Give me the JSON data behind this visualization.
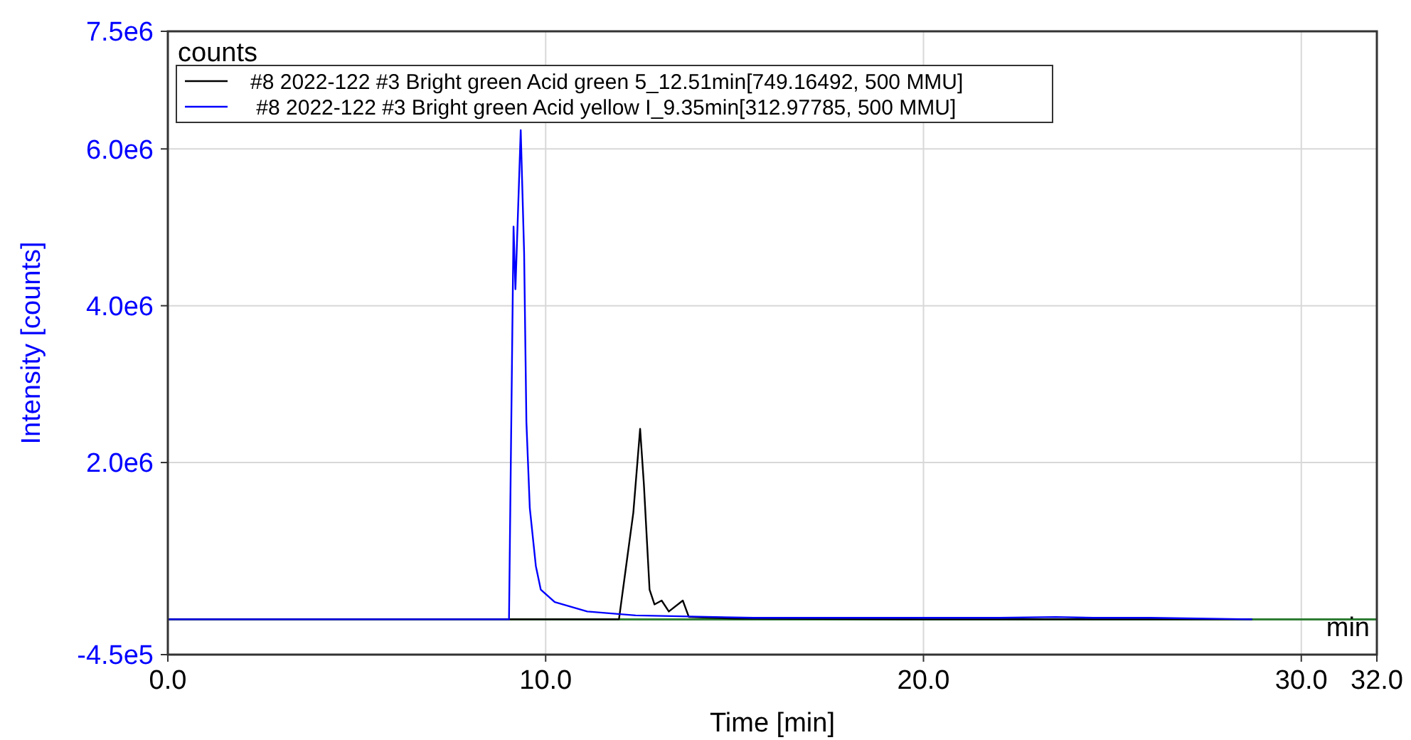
{
  "chart_data": {
    "type": "line",
    "xlabel": "Time [min]",
    "ylabel": "Intensity [counts]",
    "xlim": [
      0,
      32
    ],
    "xticks": [
      {
        "value": 0,
        "label": "0.0"
      },
      {
        "value": 10,
        "label": "10.0"
      },
      {
        "value": 20,
        "label": "20.0"
      },
      {
        "value": 30,
        "label": "30.0"
      },
      {
        "value": 32,
        "label": "32.0"
      }
    ],
    "ylim": [
      -450000,
      7500000
    ],
    "yticks": [
      {
        "value": -450000,
        "label": "-4.5e5"
      },
      {
        "value": 2000000,
        "label": "2.0e6"
      },
      {
        "value": 4000000,
        "label": "4.0e6"
      },
      {
        "value": 6000000,
        "label": "6.0e6"
      },
      {
        "value": 7500000,
        "label": "7.5e6"
      }
    ],
    "grid": true,
    "legend": "top left",
    "line_style": "solid",
    "annotations": [
      "counts",
      "min"
    ],
    "ref_lines": [
      {
        "axis": "y",
        "value": 0,
        "color": "#2e7d32"
      }
    ],
    "series": [
      {
        "name": "#8 2022-122 #3 Bright green Acid green 5_12.51min[749.16492, 500 MMU]",
        "color": "#000000",
        "x": [
          0,
          11.94,
          12.13,
          12.32,
          12.5,
          12.6,
          12.75,
          12.88,
          13.07,
          13.26,
          13.63,
          13.79,
          15,
          20,
          28.7
        ],
        "values": [
          0,
          0,
          680000,
          1360000,
          2430000,
          1720000,
          380000,
          190000,
          240000,
          100000,
          240000,
          30000,
          10000,
          0,
          0
        ]
      },
      {
        "name": " #8 2022-122 #3 Bright green Acid yellow I_9.35min[312.97785, 500 MMU]",
        "color": "#0000ff",
        "x": [
          0,
          9.03,
          9.15,
          9.2,
          9.34,
          9.43,
          9.49,
          9.58,
          9.74,
          9.87,
          10.24,
          11.1,
          12.38,
          15.5,
          20,
          22,
          23.5,
          24.5,
          26,
          28.7
        ],
        "values": [
          0,
          0,
          5010000,
          4210000,
          6240000,
          4670000,
          2520000,
          1420000,
          680000,
          380000,
          220000,
          100000,
          50000,
          20000,
          20000,
          20000,
          30000,
          20000,
          20000,
          0
        ]
      }
    ]
  }
}
